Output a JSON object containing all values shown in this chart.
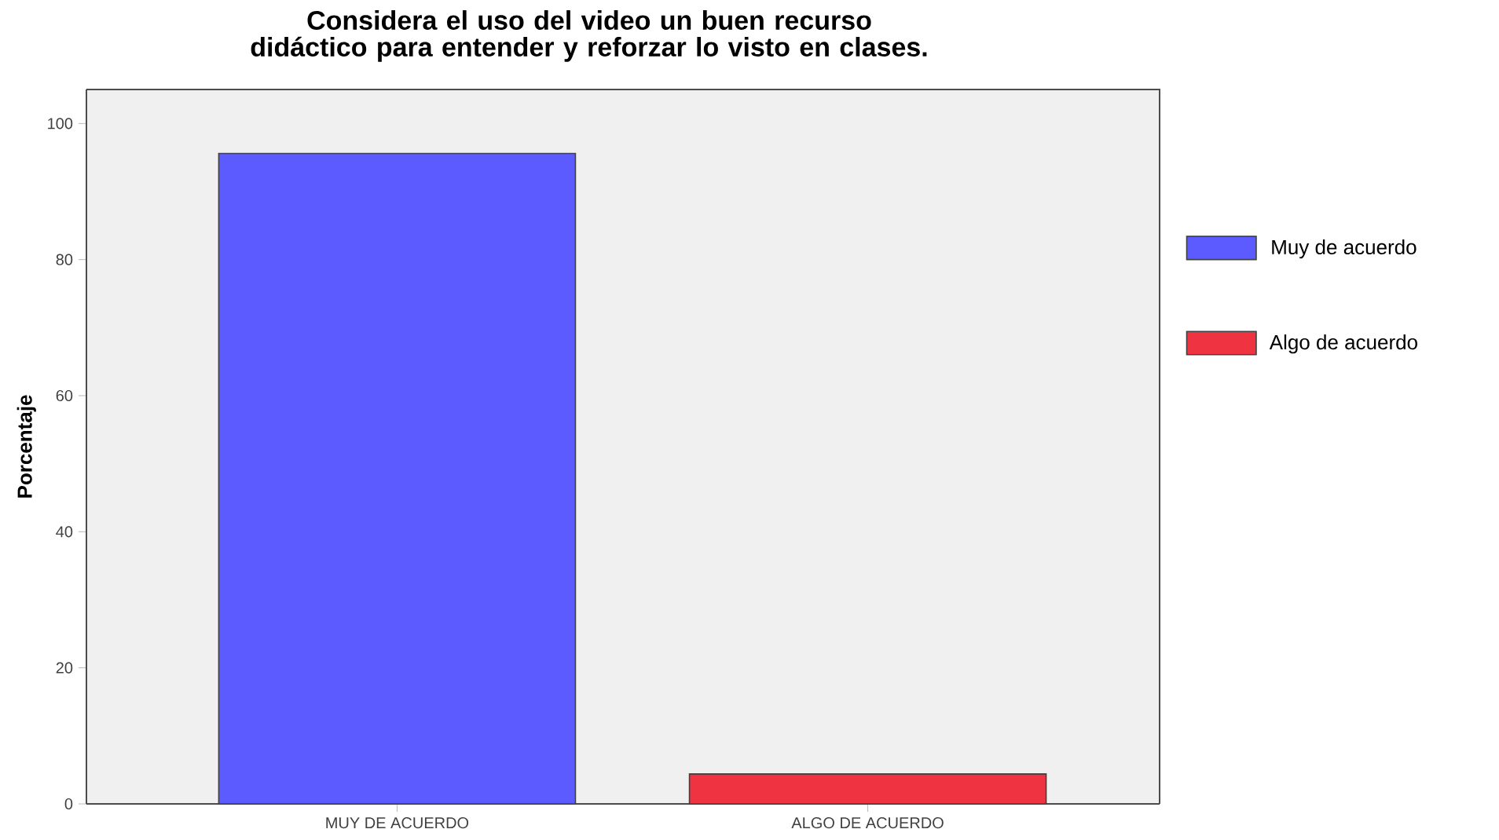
{
  "chart_data": {
    "type": "bar",
    "title": "Considera el uso del video un buen recurso didáctico para entender y reforzar lo visto en clases.",
    "ylabel": "Porcentaje",
    "categories": [
      "MUY DE ACUERDO",
      "ALGO DE ACUERDO"
    ],
    "series": [
      {
        "name": "Muy de acuerdo",
        "color": "#5b5bff",
        "values": [
          95.6,
          null
        ]
      },
      {
        "name": "Algo de acuerdo",
        "color": "#ef3340",
        "values": [
          null,
          4.4
        ]
      }
    ],
    "ylim": [
      0,
      105
    ],
    "yticks": [
      0,
      20,
      40,
      60,
      80,
      100
    ],
    "legend": "right"
  }
}
